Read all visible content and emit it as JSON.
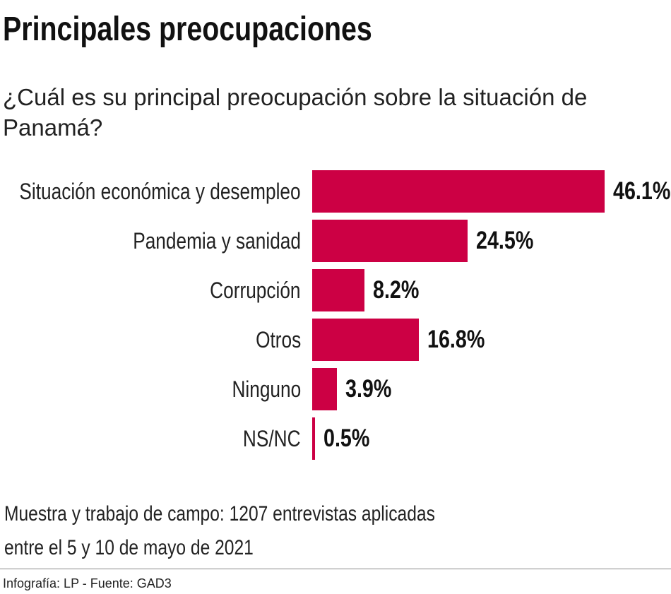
{
  "title": "Principales preocupaciones",
  "subtitle": "¿Cuál es su principal preocupación sobre la situación de Panamá?",
  "chart_data": {
    "type": "bar",
    "orientation": "horizontal",
    "categories": [
      "Situación económica y desempleo",
      "Pandemia y sanidad",
      "Corrupción",
      "Otros",
      "Ninguno",
      "NS/NC"
    ],
    "values": [
      46.1,
      24.5,
      8.2,
      16.8,
      3.9,
      0.5
    ],
    "value_labels": [
      "46.1%",
      "24.5%",
      "8.2%",
      "16.8%",
      "3.9%",
      "0.5%"
    ],
    "unit": "%",
    "bar_color": "#cc0044",
    "grid": false,
    "axis_visible": false
  },
  "note_line1": "Muestra y trabajo de campo: 1207 entrevistas aplicadas",
  "note_line2": "entre el 5 y 10 de mayo de 2021",
  "source": "Infografía: LP - Fuente: GAD3"
}
